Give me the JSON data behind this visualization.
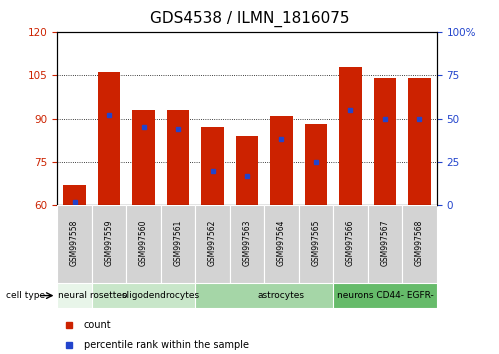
{
  "title": "GDS4538 / ILMN_1816075",
  "samples": [
    "GSM997558",
    "GSM997559",
    "GSM997560",
    "GSM997561",
    "GSM997562",
    "GSM997563",
    "GSM997564",
    "GSM997565",
    "GSM997566",
    "GSM997567",
    "GSM997568"
  ],
  "bar_values": [
    67,
    106,
    93,
    93,
    87,
    84,
    91,
    88,
    108,
    104,
    104
  ],
  "bar_bottom": 60,
  "percentile_values": [
    2,
    52,
    45,
    44,
    20,
    17,
    38,
    25,
    55,
    50,
    50
  ],
  "cell_types": [
    {
      "label": "neural rosettes",
      "start": 0,
      "end": 1,
      "color": "#e8f5e9"
    },
    {
      "label": "oligodendrocytes",
      "start": 1,
      "end": 4,
      "color": "#c8e6c9"
    },
    {
      "label": "astrocytes",
      "start": 4,
      "end": 8,
      "color": "#a5d6a7"
    },
    {
      "label": "neurons CD44- EGFR-",
      "start": 8,
      "end": 10,
      "color": "#66bb6a"
    }
  ],
  "ylim_left": [
    60,
    120
  ],
  "ylim_right": [
    0,
    100
  ],
  "yticks_left": [
    60,
    75,
    90,
    105,
    120
  ],
  "yticks_right": [
    0,
    25,
    50,
    75,
    100
  ],
  "bar_color": "#cc2200",
  "dot_color": "#2244cc",
  "bar_width": 0.65,
  "legend_count_label": "count",
  "legend_pct_label": "percentile rank within the sample",
  "cell_type_label": "cell type",
  "title_fontsize": 11,
  "tick_fontsize": 7.5,
  "sample_fontsize": 5.5,
  "ct_fontsize": 6.5,
  "legend_fontsize": 7
}
